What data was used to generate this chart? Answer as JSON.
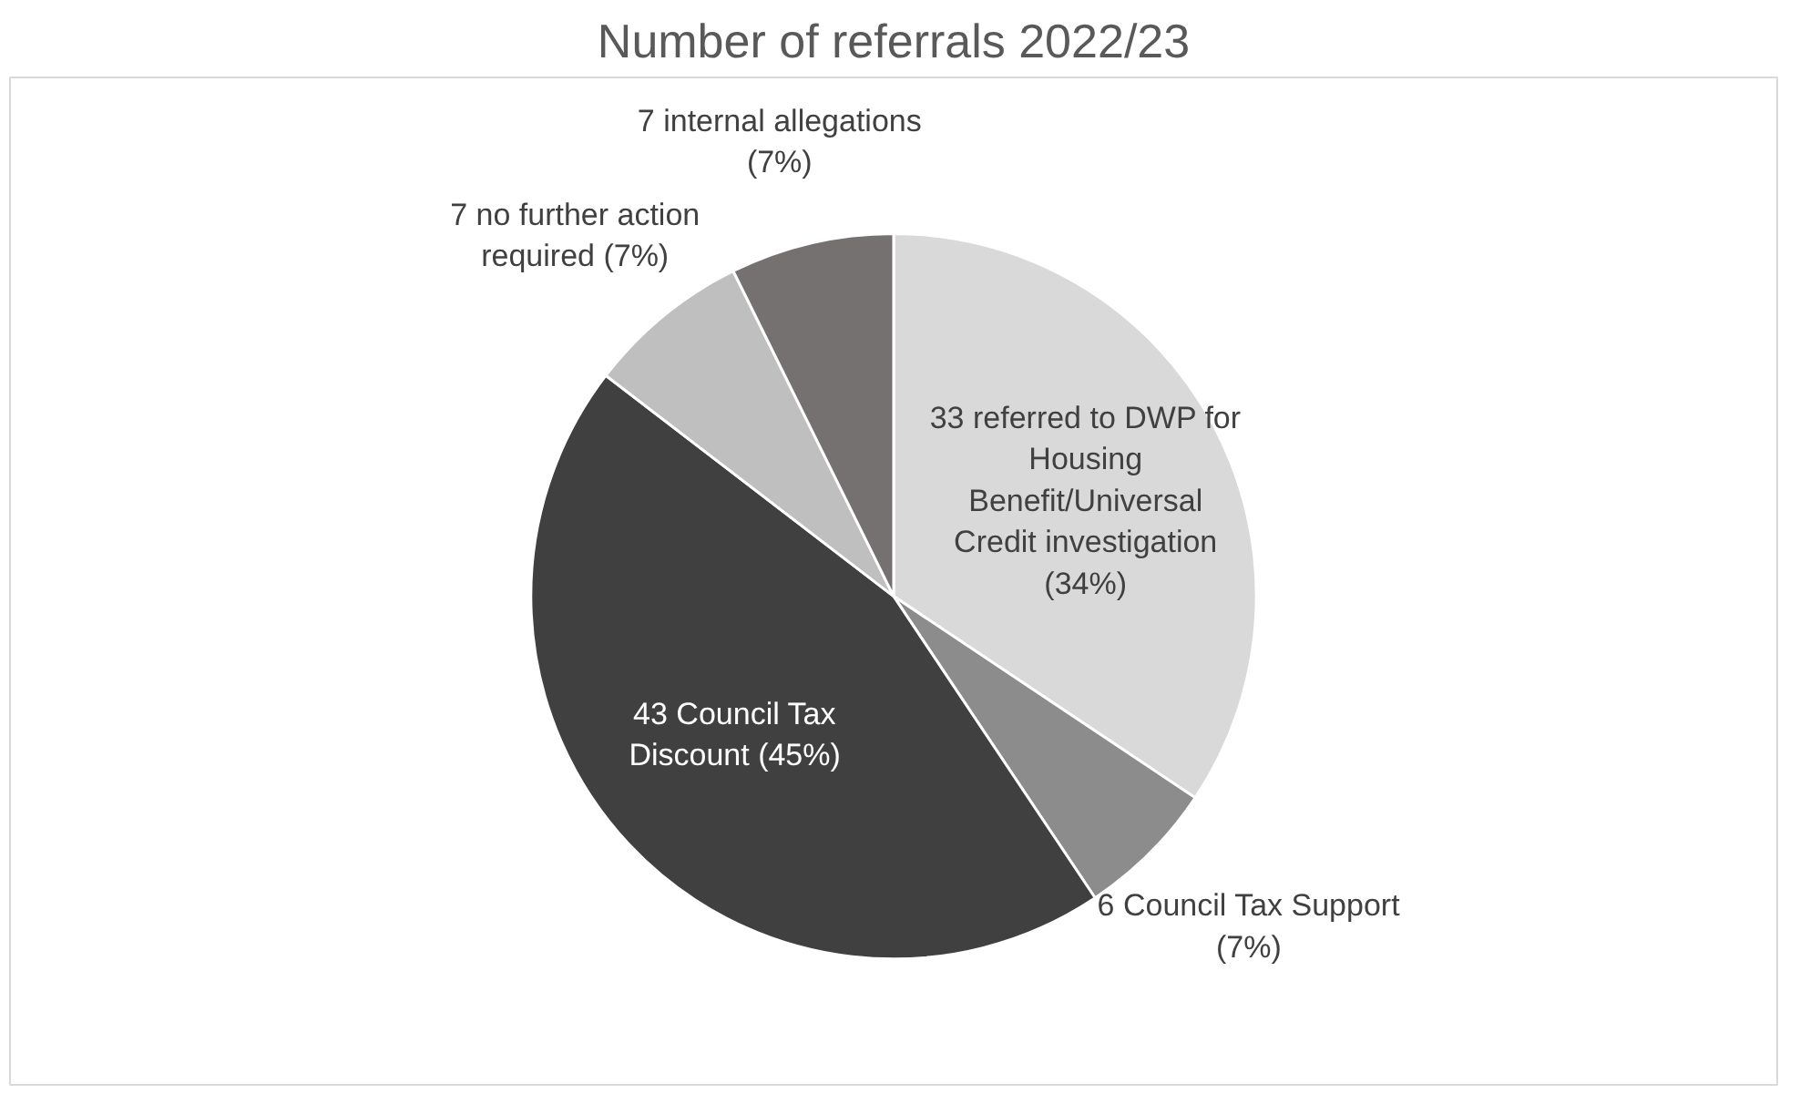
{
  "chart_data": {
    "type": "pie",
    "title": "Number of referrals 2022/23",
    "categories": [
      "33 referred to DWP for Housing Benefit/Universal Credit investigation (34%)",
      "6 Council Tax Support (7%)",
      "43 Council Tax Discount (45%)",
      "7 no further action required (7%)",
      "7 internal allegations (7%)"
    ],
    "values": [
      33,
      6,
      43,
      7,
      7
    ],
    "colors": [
      "#d9d9d9",
      "#8c8c8c",
      "#404040",
      "#bfbfbf",
      "#767171"
    ],
    "legend": false
  }
}
